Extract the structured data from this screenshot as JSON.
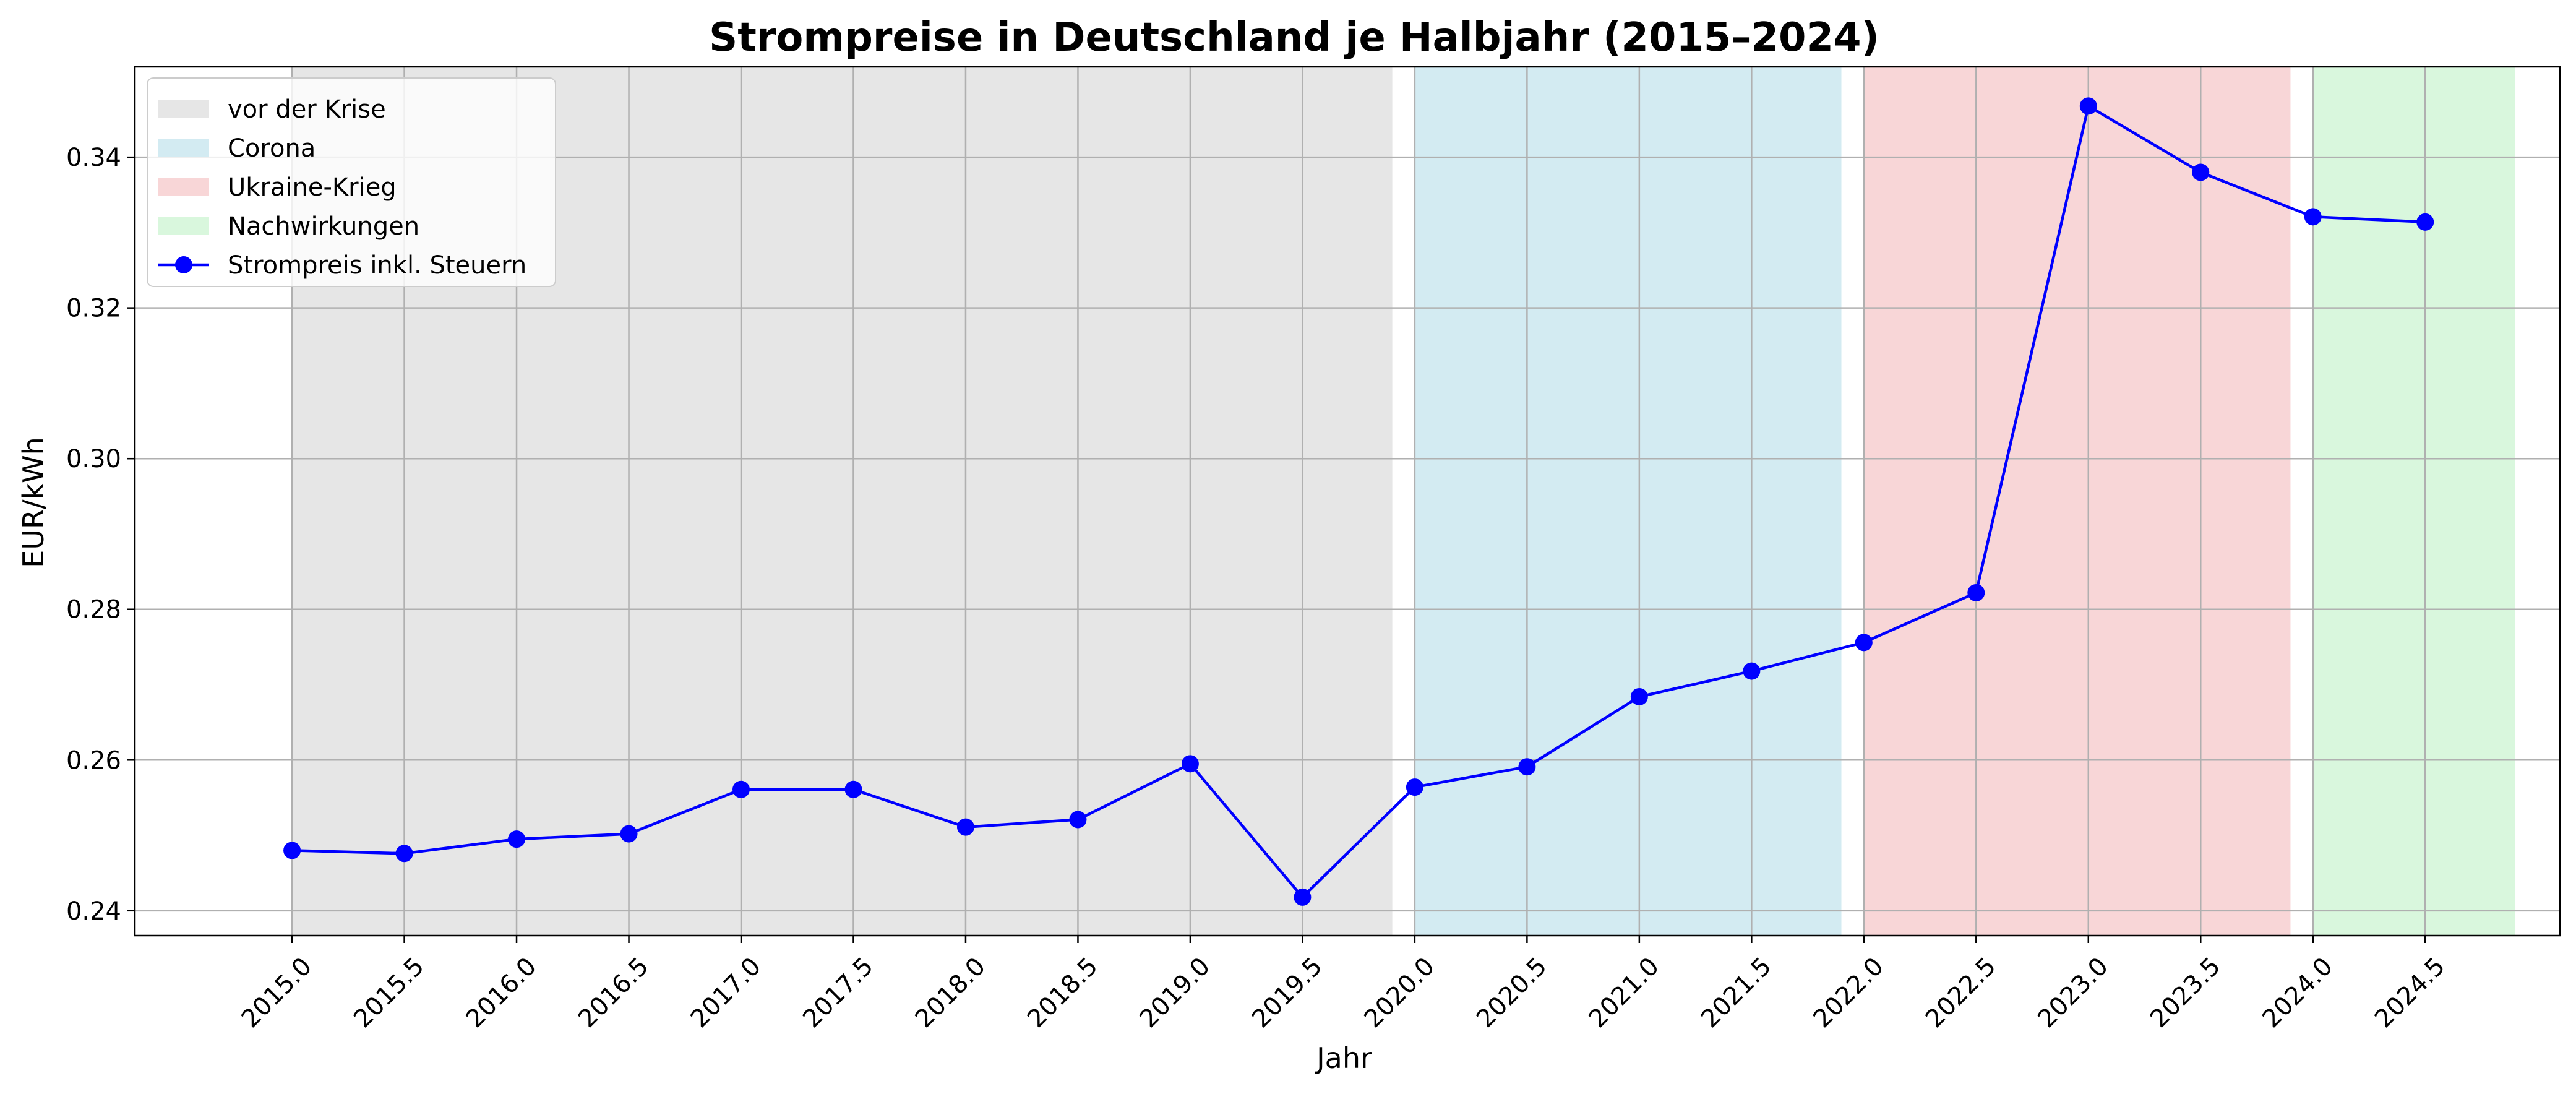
{
  "chart_data": {
    "type": "line",
    "title": "Strompreise in Deutschland je Halbjahr (2015–2024)",
    "xlabel": "Jahr",
    "ylabel": "EUR/kWh",
    "xlim": [
      2014.3,
      2025.1
    ],
    "ylim": [
      0.2367,
      0.352
    ],
    "x_ticks": [
      2015.0,
      2015.5,
      2016.0,
      2016.5,
      2017.0,
      2017.5,
      2018.0,
      2018.5,
      2019.0,
      2019.5,
      2020.0,
      2020.5,
      2021.0,
      2021.5,
      2022.0,
      2022.5,
      2023.0,
      2023.5,
      2024.0,
      2024.5
    ],
    "x_tick_labels": [
      "2015.0",
      "2015.5",
      "2016.0",
      "2016.5",
      "2017.0",
      "2017.5",
      "2018.0",
      "2018.5",
      "2019.0",
      "2019.5",
      "2020.0",
      "2020.5",
      "2021.0",
      "2021.5",
      "2022.0",
      "2022.5",
      "2023.0",
      "2023.5",
      "2024.0",
      "2024.5"
    ],
    "y_ticks": [
      0.24,
      0.26,
      0.28,
      0.3,
      0.32,
      0.34
    ],
    "y_tick_labels": [
      "0.24",
      "0.26",
      "0.28",
      "0.30",
      "0.32",
      "0.34"
    ],
    "grid": true,
    "legend_position": "top-left",
    "regions": [
      {
        "name": "vor der Krise",
        "x_start": 2015.0,
        "x_end": 2019.9,
        "color": "#e6e6e6"
      },
      {
        "name": "Corona",
        "x_start": 2020.0,
        "x_end": 2021.9,
        "color": "#d3ebf2"
      },
      {
        "name": "Ukraine-Krieg",
        "x_start": 2022.0,
        "x_end": 2023.9,
        "color": "#f8d6d7"
      },
      {
        "name": "Nachwirkungen",
        "x_start": 2024.0,
        "x_end": 2024.9,
        "color": "#d9f7dd"
      }
    ],
    "series": [
      {
        "name": "Strompreis inkl. Steuern",
        "color": "#0000ff",
        "x": [
          2015.0,
          2015.5,
          2016.0,
          2016.5,
          2017.0,
          2017.5,
          2018.0,
          2018.5,
          2019.0,
          2019.5,
          2020.0,
          2020.5,
          2021.0,
          2021.5,
          2022.0,
          2022.5,
          2023.0,
          2023.5,
          2024.0,
          2024.5
        ],
        "y": [
          0.248,
          0.2476,
          0.2495,
          0.2502,
          0.2561,
          0.2561,
          0.2511,
          0.2521,
          0.2595,
          0.2418,
          0.2564,
          0.2591,
          0.2684,
          0.2718,
          0.2756,
          0.2822,
          0.3468,
          0.338,
          0.3321,
          0.3314
        ]
      }
    ]
  }
}
